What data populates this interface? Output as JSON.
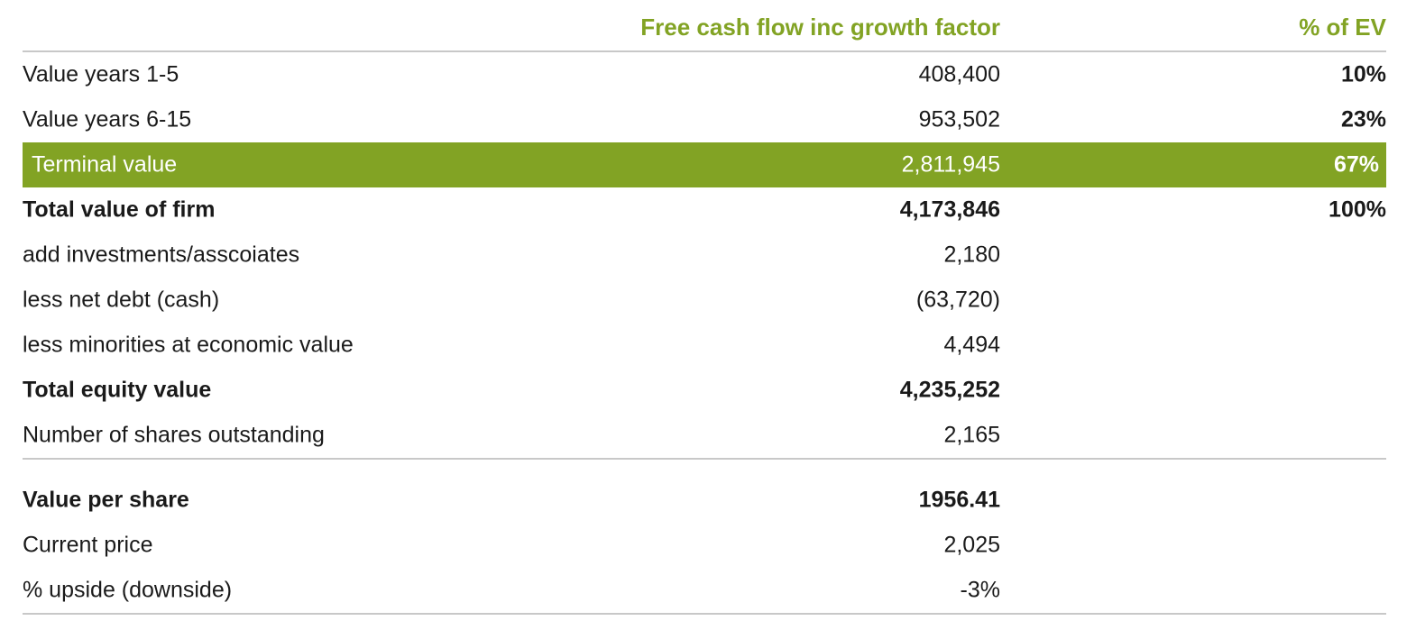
{
  "header": {
    "value_col": "Free cash flow inc growth factor",
    "pct_col": "% of EV"
  },
  "rows": [
    {
      "label": "Value years 1-5",
      "value": "408,400",
      "pct": "10%"
    },
    {
      "label": "Value years 6-15",
      "value": "953,502",
      "pct": "23%"
    },
    {
      "label": "Terminal value",
      "value": "2,811,945",
      "pct": "67%"
    },
    {
      "label": "Total value of firm",
      "value": "4,173,846",
      "pct": "100%"
    },
    {
      "label": "add investments/asscoiates",
      "value": "2,180",
      "pct": ""
    },
    {
      "label": "less net debt (cash)",
      "value": "(63,720)",
      "pct": ""
    },
    {
      "label": "less minorities at economic value",
      "value": "4,494",
      "pct": ""
    },
    {
      "label": "Total equity value",
      "value": "4,235,252",
      "pct": ""
    },
    {
      "label": "Number of shares outstanding",
      "value": "2,165",
      "pct": ""
    }
  ],
  "summary": [
    {
      "label": "Value per share",
      "value": "1956.41"
    },
    {
      "label": "Current price",
      "value": "2,025"
    },
    {
      "label": "% upside (downside)",
      "value": "-3%"
    }
  ],
  "colors": {
    "accent": "#82a324",
    "divider": "#c8c8c8",
    "text": "#1a1a1a"
  }
}
